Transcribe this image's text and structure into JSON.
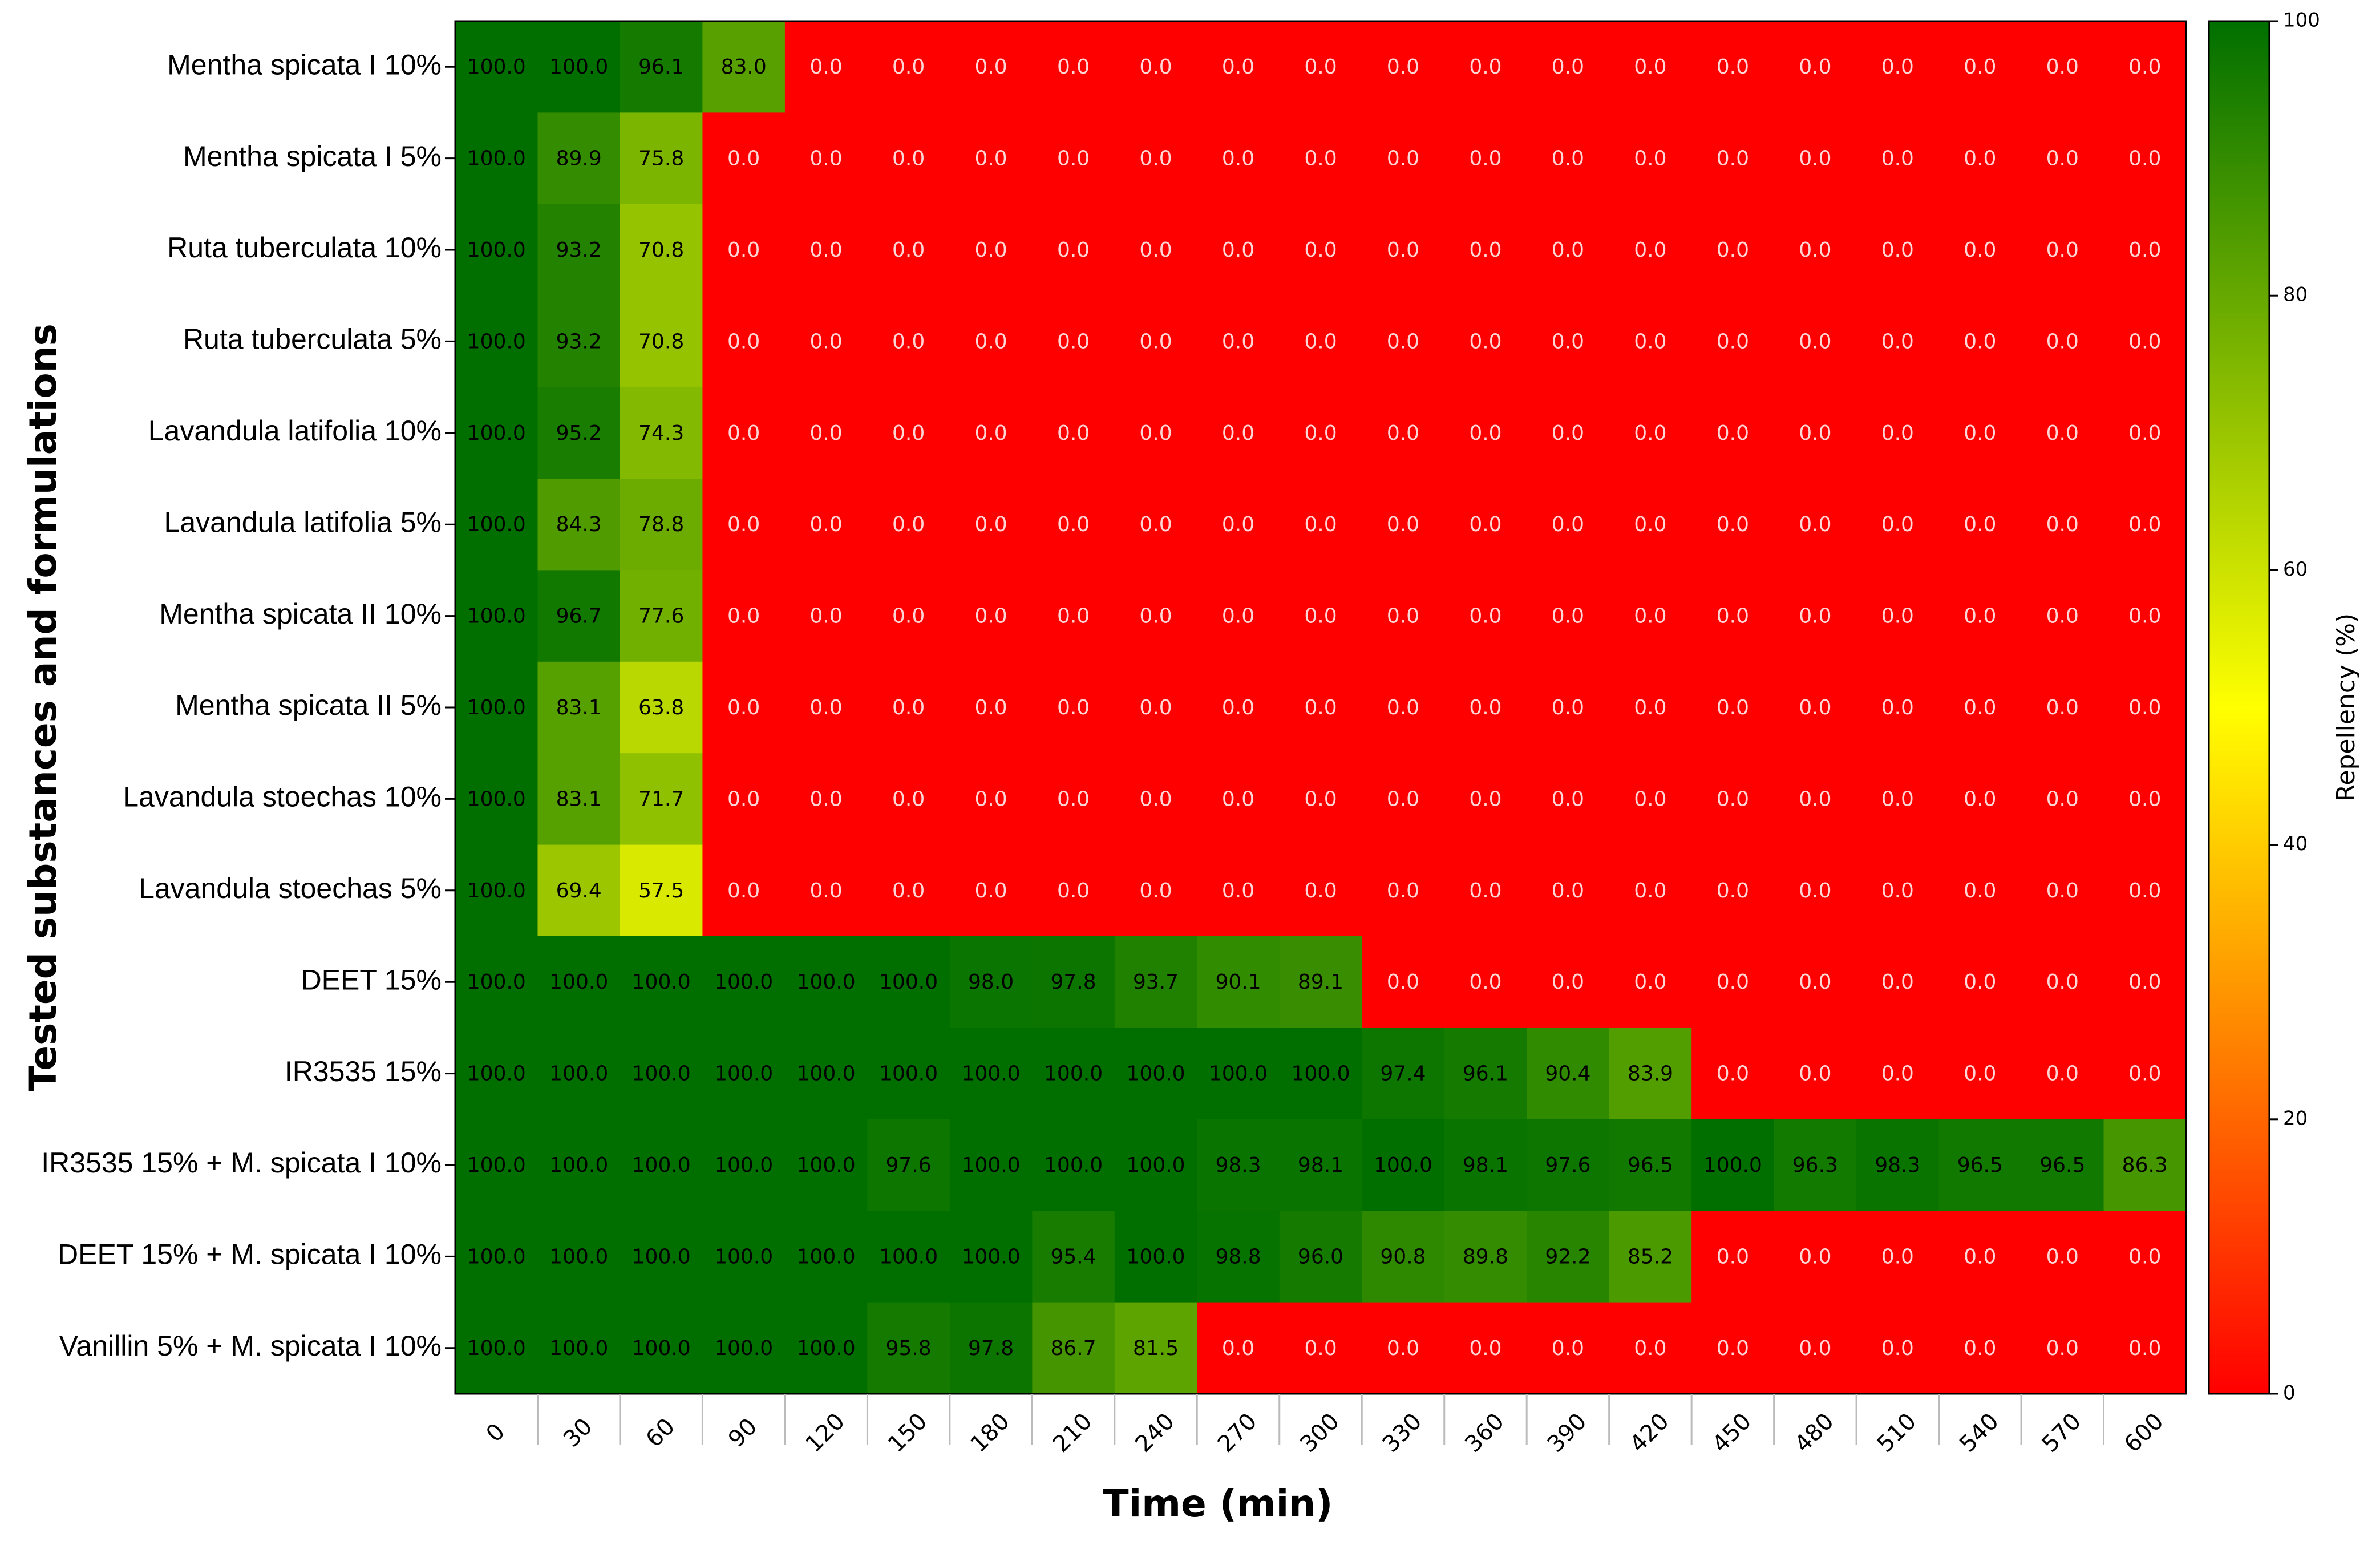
{
  "chart_data": {
    "type": "heatmap",
    "x_label": "Time (min)",
    "y_label": "Tested substances and formulations",
    "colorbar_label": "Repellency (%)",
    "x": [
      "0",
      "30",
      "60",
      "90",
      "120",
      "150",
      "180",
      "210",
      "240",
      "270",
      "300",
      "330",
      "360",
      "390",
      "420",
      "450",
      "480",
      "510",
      "540",
      "570",
      "600"
    ],
    "categories": [
      "Mentha spicata I 10%",
      "Mentha spicata I 5%",
      "Ruta tuberculata 10%",
      "Ruta tuberculata 5%",
      "Lavandula latifolia 10%",
      "Lavandula latifolia 5%",
      "Mentha spicata II 10%",
      "Mentha spicata II 5%",
      "Lavandula stoechas 10%",
      "Lavandula stoechas 5%",
      "DEET 15%",
      "IR3535 15%",
      "IR3535 15% + M. spicata I 10%",
      "DEET 15% + M. spicata I 10%",
      "Vanillin 5% + M. spicata I 10%"
    ],
    "values": [
      [
        100,
        100,
        96.1,
        83.0,
        0,
        0,
        0,
        0,
        0,
        0,
        0,
        0,
        0,
        0,
        0,
        0,
        0,
        0,
        0,
        0,
        0
      ],
      [
        100,
        89.9,
        75.8,
        0,
        0,
        0,
        0,
        0,
        0,
        0,
        0,
        0,
        0,
        0,
        0,
        0,
        0,
        0,
        0,
        0,
        0
      ],
      [
        100,
        93.2,
        70.8,
        0,
        0,
        0,
        0,
        0,
        0,
        0,
        0,
        0,
        0,
        0,
        0,
        0,
        0,
        0,
        0,
        0,
        0
      ],
      [
        100,
        93.2,
        70.8,
        0,
        0,
        0,
        0,
        0,
        0,
        0,
        0,
        0,
        0,
        0,
        0,
        0,
        0,
        0,
        0,
        0,
        0
      ],
      [
        100,
        95.2,
        74.3,
        0,
        0,
        0,
        0,
        0,
        0,
        0,
        0,
        0,
        0,
        0,
        0,
        0,
        0,
        0,
        0,
        0,
        0
      ],
      [
        100,
        84.3,
        78.8,
        0,
        0,
        0,
        0,
        0,
        0,
        0,
        0,
        0,
        0,
        0,
        0,
        0,
        0,
        0,
        0,
        0,
        0
      ],
      [
        100,
        96.7,
        77.6,
        0,
        0,
        0,
        0,
        0,
        0,
        0,
        0,
        0,
        0,
        0,
        0,
        0,
        0,
        0,
        0,
        0,
        0
      ],
      [
        100,
        83.1,
        63.8,
        0,
        0,
        0,
        0,
        0,
        0,
        0,
        0,
        0,
        0,
        0,
        0,
        0,
        0,
        0,
        0,
        0,
        0
      ],
      [
        100,
        83.1,
        71.7,
        0,
        0,
        0,
        0,
        0,
        0,
        0,
        0,
        0,
        0,
        0,
        0,
        0,
        0,
        0,
        0,
        0,
        0
      ],
      [
        100,
        69.4,
        57.5,
        0,
        0,
        0,
        0,
        0,
        0,
        0,
        0,
        0,
        0,
        0,
        0,
        0,
        0,
        0,
        0,
        0,
        0
      ],
      [
        100,
        100,
        100,
        100,
        100,
        100,
        98.0,
        97.8,
        93.7,
        90.1,
        89.1,
        0,
        0,
        0,
        0,
        0,
        0,
        0,
        0,
        0,
        0
      ],
      [
        100,
        100,
        100,
        100,
        100,
        100,
        100,
        100,
        100,
        100,
        100,
        97.4,
        96.1,
        90.4,
        83.9,
        0,
        0,
        0,
        0,
        0,
        0
      ],
      [
        100,
        100,
        100,
        100,
        100,
        97.6,
        100,
        100,
        100,
        98.3,
        98.1,
        100,
        98.1,
        97.6,
        96.5,
        100,
        96.3,
        98.3,
        96.5,
        96.5,
        86.3
      ],
      [
        100,
        100,
        100,
        100,
        100,
        100,
        100,
        95.4,
        100,
        98.8,
        96.0,
        90.8,
        89.8,
        92.2,
        85.2,
        0,
        0,
        0,
        0,
        0,
        0
      ],
      [
        100,
        100,
        100,
        100,
        100,
        95.8,
        97.8,
        86.7,
        81.5,
        0,
        0,
        0,
        0,
        0,
        0,
        0,
        0,
        0,
        0,
        0,
        0
      ]
    ],
    "value_labels": [
      [
        "100.0",
        "100.0",
        "96.1",
        "83.0",
        "0.0",
        "0.0",
        "0.0",
        "0.0",
        "0.0",
        "0.0",
        "0.0",
        "0.0",
        "0.0",
        "0.0",
        "0.0",
        "0.0",
        "0.0",
        "0.0",
        "0.0",
        "0.0",
        "0.0"
      ],
      [
        "100.0",
        "89.9",
        "75.8",
        "0.0",
        "0.0",
        "0.0",
        "0.0",
        "0.0",
        "0.0",
        "0.0",
        "0.0",
        "0.0",
        "0.0",
        "0.0",
        "0.0",
        "0.0",
        "0.0",
        "0.0",
        "0.0",
        "0.0",
        "0.0"
      ],
      [
        "100.0",
        "93.2",
        "70.8",
        "0.0",
        "0.0",
        "0.0",
        "0.0",
        "0.0",
        "0.0",
        "0.0",
        "0.0",
        "0.0",
        "0.0",
        "0.0",
        "0.0",
        "0.0",
        "0.0",
        "0.0",
        "0.0",
        "0.0",
        "0.0"
      ],
      [
        "100.0",
        "93.2",
        "70.8",
        "0.0",
        "0.0",
        "0.0",
        "0.0",
        "0.0",
        "0.0",
        "0.0",
        "0.0",
        "0.0",
        "0.0",
        "0.0",
        "0.0",
        "0.0",
        "0.0",
        "0.0",
        "0.0",
        "0.0",
        "0.0"
      ],
      [
        "100.0",
        "95.2",
        "74.3",
        "0.0",
        "0.0",
        "0.0",
        "0.0",
        "0.0",
        "0.0",
        "0.0",
        "0.0",
        "0.0",
        "0.0",
        "0.0",
        "0.0",
        "0.0",
        "0.0",
        "0.0",
        "0.0",
        "0.0",
        "0.0"
      ],
      [
        "100.0",
        "84.3",
        "78.8",
        "0.0",
        "0.0",
        "0.0",
        "0.0",
        "0.0",
        "0.0",
        "0.0",
        "0.0",
        "0.0",
        "0.0",
        "0.0",
        "0.0",
        "0.0",
        "0.0",
        "0.0",
        "0.0",
        "0.0",
        "0.0"
      ],
      [
        "100.0",
        "96.7",
        "77.6",
        "0.0",
        "0.0",
        "0.0",
        "0.0",
        "0.0",
        "0.0",
        "0.0",
        "0.0",
        "0.0",
        "0.0",
        "0.0",
        "0.0",
        "0.0",
        "0.0",
        "0.0",
        "0.0",
        "0.0",
        "0.0"
      ],
      [
        "100.0",
        "83.1",
        "63.8",
        "0.0",
        "0.0",
        "0.0",
        "0.0",
        "0.0",
        "0.0",
        "0.0",
        "0.0",
        "0.0",
        "0.0",
        "0.0",
        "0.0",
        "0.0",
        "0.0",
        "0.0",
        "0.0",
        "0.0",
        "0.0"
      ],
      [
        "100.0",
        "83.1",
        "71.7",
        "0.0",
        "0.0",
        "0.0",
        "0.0",
        "0.0",
        "0.0",
        "0.0",
        "0.0",
        "0.0",
        "0.0",
        "0.0",
        "0.0",
        "0.0",
        "0.0",
        "0.0",
        "0.0",
        "0.0",
        "0.0"
      ],
      [
        "100.0",
        "69.4",
        "57.5",
        "0.0",
        "0.0",
        "0.0",
        "0.0",
        "0.0",
        "0.0",
        "0.0",
        "0.0",
        "0.0",
        "0.0",
        "0.0",
        "0.0",
        "0.0",
        "0.0",
        "0.0",
        "0.0",
        "0.0",
        "0.0"
      ],
      [
        "100.0",
        "100.0",
        "100.0",
        "100.0",
        "100.0",
        "100.0",
        "98.0",
        "97.8",
        "93.7",
        "90.1",
        "89.1",
        "0.0",
        "0.0",
        "0.0",
        "0.0",
        "0.0",
        "0.0",
        "0.0",
        "0.0",
        "0.0",
        "0.0"
      ],
      [
        "100.0",
        "100.0",
        "100.0",
        "100.0",
        "100.0",
        "100.0",
        "100.0",
        "100.0",
        "100.0",
        "100.0",
        "100.0",
        "97.4",
        "96.1",
        "90.4",
        "83.9",
        "0.0",
        "0.0",
        "0.0",
        "0.0",
        "0.0",
        "0.0"
      ],
      [
        "100.0",
        "100.0",
        "100.0",
        "100.0",
        "100.0",
        "97.6",
        "100.0",
        "100.0",
        "100.0",
        "98.3",
        "98.1",
        "100.0",
        "98.1",
        "97.6",
        "96.5",
        "100.0",
        "96.3",
        "98.3",
        "96.5",
        "96.5",
        "86.3"
      ],
      [
        "100.0",
        "100.0",
        "100.0",
        "100.0",
        "100.0",
        "100.0",
        "100.0",
        "95.4",
        "100.0",
        "98.8",
        "96.0",
        "90.8",
        "89.8",
        "92.2",
        "85.2",
        "0.0",
        "0.0",
        "0.0",
        "0.0",
        "0.0",
        "0.0"
      ],
      [
        "100.0",
        "100.0",
        "100.0",
        "100.0",
        "100.0",
        "95.8",
        "97.8",
        "86.7",
        "81.5",
        "0.0",
        "0.0",
        "0.0",
        "0.0",
        "0.0",
        "0.0",
        "0.0",
        "0.0",
        "0.0",
        "0.0",
        "0.0",
        "0.0"
      ]
    ],
    "colormap": [
      "#ff0000",
      "#ffff00",
      "#006f00"
    ],
    "clim": [
      0,
      100
    ],
    "cticks": [
      0,
      20,
      40,
      60,
      80,
      100
    ]
  }
}
